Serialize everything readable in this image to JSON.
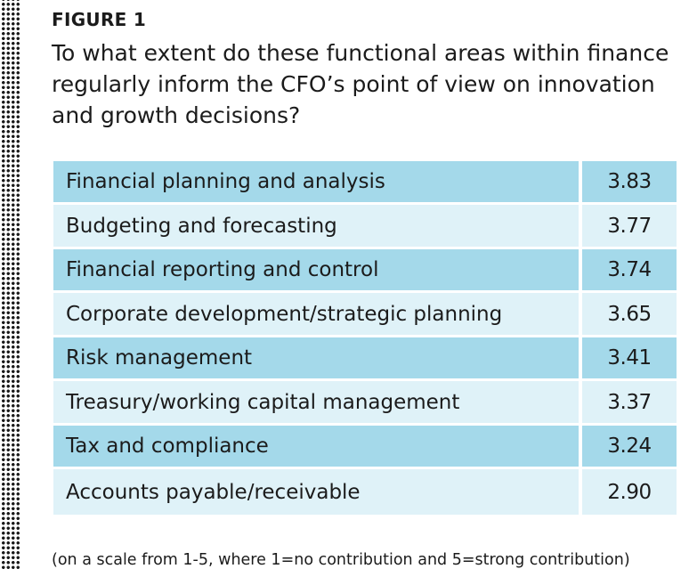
{
  "figure_label": "FIGURE 1",
  "footnote": "(on a scale from 1-5, where 1=no contribution and 5=strong contribution)",
  "colors": {
    "row_dark": "#a4d9ea",
    "row_light": "#dff2f8",
    "text": "#1b1b1b"
  },
  "chart_data": {
    "type": "table",
    "title": "To what extent do these functional areas within finance regularly inform the CFO’s point of view on innovation and growth decisions?",
    "categories": [
      "Financial planning and analysis",
      "Budgeting and forecasting",
      "Financial reporting and control",
      "Corporate development/strategic planning",
      "Risk management",
      "Treasury/working capital management",
      "Tax and compliance",
      "Accounts payable/receivable"
    ],
    "values": [
      "3.83",
      "3.77",
      "3.74",
      "3.65",
      "3.41",
      "3.37",
      "3.24",
      "2.90"
    ]
  }
}
